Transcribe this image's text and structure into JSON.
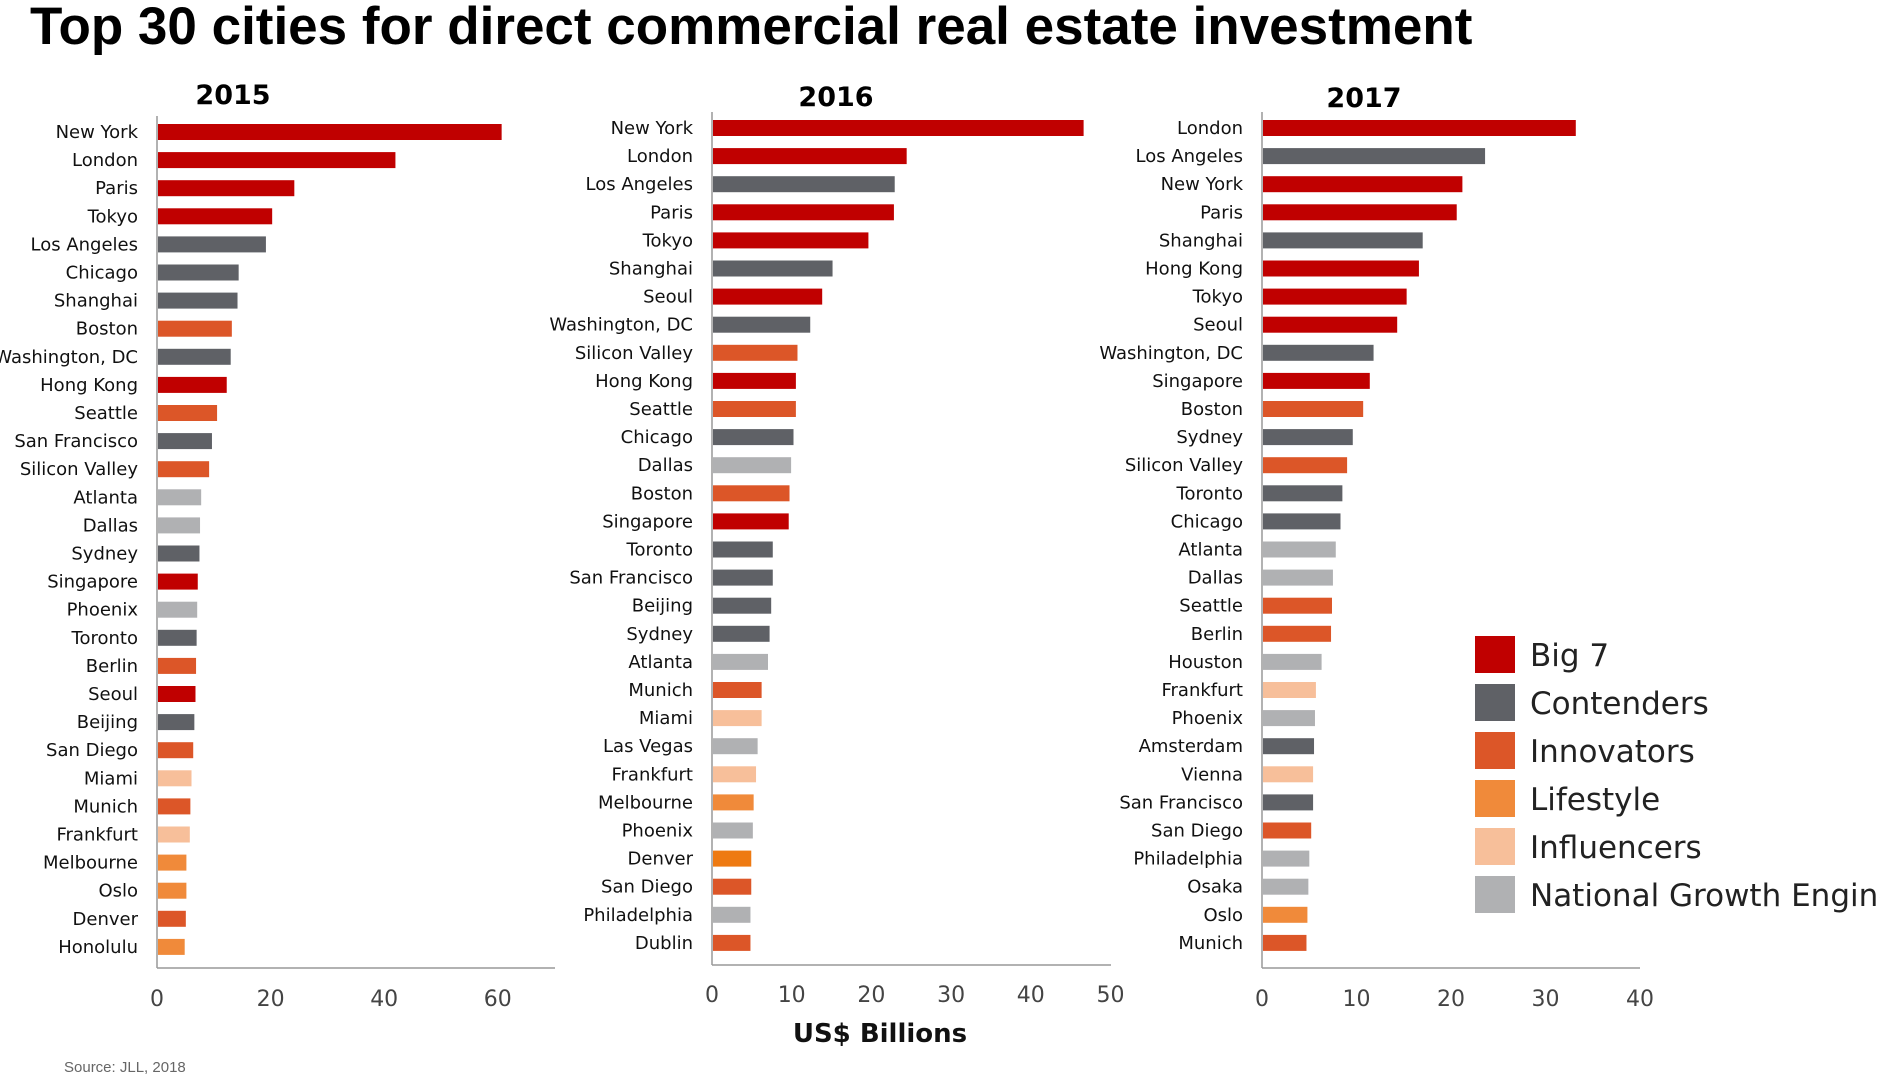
{
  "title": "Top 30 cities for direct commercial real estate investment",
  "source": "Source: JLL, 2018",
  "colors": {
    "Big 7": "#c00000",
    "Contenders": "#5f6166",
    "Innovators": "#dc5628",
    "Lifestyle": "#f08a3a",
    "Influencers": "#f7bf9a",
    "National Growth Engines": "#b0b1b3",
    "Lifestyle-alt": "#ee7a12"
  },
  "legend": {
    "items": [
      {
        "name": "Big 7",
        "color": "#c00000"
      },
      {
        "name": "Contenders",
        "color": "#5f6166"
      },
      {
        "name": "Innovators",
        "color": "#dc5628"
      },
      {
        "name": "Lifestyle",
        "color": "#f08a3a"
      },
      {
        "name": "Influencers",
        "color": "#f7bf9a"
      },
      {
        "name": "National Growth Engines",
        "color": "#b0b1b3"
      }
    ]
  },
  "chart_data": [
    {
      "type": "bar",
      "orientation": "horizontal",
      "title": "2015",
      "xlabel": "",
      "xlim": [
        0,
        70
      ],
      "xticks": [
        0,
        20,
        40,
        60
      ],
      "categories": [
        "New York",
        "London",
        "Paris",
        "Tokyo",
        "Los Angeles",
        "Chicago",
        "Shanghai",
        "Boston",
        "Washington, DC",
        "Hong Kong",
        "Seattle",
        "San Francisco",
        "Silicon Valley",
        "Atlanta",
        "Dallas",
        "Sydney",
        "Singapore",
        "Phoenix",
        "Toronto",
        "Berlin",
        "Seoul",
        "Beijing",
        "San Diego",
        "Miami",
        "Munich",
        "Frankfurt",
        "Melbourne",
        "Oslo",
        "Denver",
        "Honolulu"
      ],
      "values": [
        60.5,
        41.8,
        24.0,
        20.1,
        19.0,
        14.2,
        14.0,
        13.0,
        12.8,
        12.1,
        10.4,
        9.5,
        9.0,
        7.6,
        7.4,
        7.3,
        7.0,
        6.9,
        6.8,
        6.7,
        6.6,
        6.4,
        6.2,
        5.9,
        5.7,
        5.6,
        5.0,
        5.0,
        4.9,
        4.7
      ],
      "groups": [
        "Big 7",
        "Big 7",
        "Big 7",
        "Big 7",
        "Contenders",
        "Contenders",
        "Contenders",
        "Innovators",
        "Contenders",
        "Big 7",
        "Innovators",
        "Contenders",
        "Innovators",
        "National Growth Engines",
        "National Growth Engines",
        "Contenders",
        "Big 7",
        "National Growth Engines",
        "Contenders",
        "Innovators",
        "Big 7",
        "Contenders",
        "Innovators",
        "Influencers",
        "Innovators",
        "Influencers",
        "Lifestyle",
        "Lifestyle",
        "Innovators",
        "Lifestyle"
      ]
    },
    {
      "type": "bar",
      "orientation": "horizontal",
      "title": "2016",
      "xlabel": "US$ Billions",
      "xlim": [
        0,
        50
      ],
      "xticks": [
        0,
        10,
        20,
        30,
        40,
        50
      ],
      "categories": [
        "New York",
        "London",
        "Los Angeles",
        "Paris",
        "Tokyo",
        "Shanghai",
        "Seoul",
        "Washington, DC",
        "Silicon Valley",
        "Hong Kong",
        "Seattle",
        "Chicago",
        "Dallas",
        "Boston",
        "Singapore",
        "Toronto",
        "San Francisco",
        "Beijing",
        "Sydney",
        "Atlanta",
        "Munich",
        "Miami",
        "Las Vegas",
        "Frankfurt",
        "Melbourne",
        "Phoenix",
        "Denver",
        "San Diego",
        "Philadelphia",
        "Dublin"
      ],
      "values": [
        46.5,
        24.3,
        22.8,
        22.7,
        19.5,
        15.0,
        13.7,
        12.2,
        10.6,
        10.4,
        10.4,
        10.1,
        9.8,
        9.6,
        9.5,
        7.5,
        7.5,
        7.3,
        7.1,
        6.9,
        6.1,
        6.1,
        5.6,
        5.4,
        5.1,
        5.0,
        4.8,
        4.8,
        4.7,
        4.7
      ],
      "groups": [
        "Big 7",
        "Big 7",
        "Contenders",
        "Big 7",
        "Big 7",
        "Contenders",
        "Big 7",
        "Contenders",
        "Innovators",
        "Big 7",
        "Innovators",
        "Contenders",
        "National Growth Engines",
        "Innovators",
        "Big 7",
        "Contenders",
        "Contenders",
        "Contenders",
        "Contenders",
        "National Growth Engines",
        "Innovators",
        "Influencers",
        "National Growth Engines",
        "Influencers",
        "Lifestyle",
        "National Growth Engines",
        "Lifestyle-alt",
        "Innovators",
        "National Growth Engines",
        "Innovators"
      ]
    },
    {
      "type": "bar",
      "orientation": "horizontal",
      "title": "2017",
      "xlabel": "",
      "xlim": [
        0,
        40
      ],
      "xticks": [
        0,
        10,
        20,
        30,
        40
      ],
      "categories": [
        "London",
        "Los Angeles",
        "New York",
        "Paris",
        "Shanghai",
        "Hong Kong",
        "Tokyo",
        "Seoul",
        "Washington, DC",
        "Singapore",
        "Boston",
        "Sydney",
        "Silicon Valley",
        "Toronto",
        "Chicago",
        "Atlanta",
        "Dallas",
        "Seattle",
        "Berlin",
        "Houston",
        "Frankfurt",
        "Phoenix",
        "Amsterdam",
        "Vienna",
        "San Francisco",
        "San Diego",
        "Philadelphia",
        "Osaka",
        "Oslo",
        "Munich"
      ],
      "values": [
        33.1,
        23.5,
        21.1,
        20.5,
        16.9,
        16.5,
        15.2,
        14.2,
        11.7,
        11.3,
        10.6,
        9.5,
        8.9,
        8.4,
        8.2,
        7.7,
        7.4,
        7.3,
        7.2,
        6.2,
        5.6,
        5.5,
        5.4,
        5.3,
        5.3,
        5.1,
        4.9,
        4.8,
        4.7,
        4.6
      ],
      "groups": [
        "Big 7",
        "Contenders",
        "Big 7",
        "Big 7",
        "Contenders",
        "Big 7",
        "Big 7",
        "Big 7",
        "Contenders",
        "Big 7",
        "Innovators",
        "Contenders",
        "Innovators",
        "Contenders",
        "Contenders",
        "National Growth Engines",
        "National Growth Engines",
        "Innovators",
        "Innovators",
        "National Growth Engines",
        "Influencers",
        "National Growth Engines",
        "Contenders",
        "Influencers",
        "Contenders",
        "Innovators",
        "National Growth Engines",
        "National Growth Engines",
        "Lifestyle",
        "Innovators"
      ]
    }
  ]
}
